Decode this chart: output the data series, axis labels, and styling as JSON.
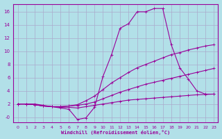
{
  "xlabel": "Windchill (Refroidissement éolien,°C)",
  "bg_color": "#b2e0e8",
  "grid_color": "#aaaacc",
  "line_color": "#990099",
  "xlim": [
    -0.5,
    23.5
  ],
  "ylim": [
    -0.8,
    17.2
  ],
  "xticks": [
    0,
    1,
    2,
    3,
    4,
    5,
    6,
    7,
    8,
    9,
    10,
    11,
    12,
    13,
    14,
    15,
    16,
    17,
    18,
    19,
    20,
    21,
    22,
    23
  ],
  "yticks": [
    0,
    2,
    4,
    6,
    8,
    10,
    12,
    14,
    16
  ],
  "ytick_labels": [
    "-0",
    "2",
    "4",
    "6",
    "8",
    "10",
    "12",
    "14",
    "16"
  ],
  "line1_x": [
    0,
    1,
    2,
    3,
    4,
    5,
    6,
    7,
    8,
    9,
    10,
    11,
    12,
    13,
    14,
    15,
    16,
    17,
    18,
    19,
    20,
    21,
    22,
    23
  ],
  "line1_y": [
    2.0,
    2.0,
    2.0,
    1.8,
    1.6,
    1.4,
    1.2,
    -0.35,
    -0.1,
    1.5,
    6.2,
    9.5,
    13.5,
    14.2,
    16.0,
    16.0,
    16.5,
    16.5,
    11.0,
    7.5,
    5.8,
    4.0,
    3.5,
    3.5
  ],
  "line2_x": [
    0,
    1,
    2,
    3,
    4,
    5,
    6,
    7,
    8,
    9,
    10,
    11,
    12,
    13,
    14,
    15,
    16,
    17,
    18,
    19,
    20,
    21,
    22,
    23
  ],
  "line2_y": [
    2.0,
    2.0,
    1.9,
    1.7,
    1.6,
    1.6,
    1.7,
    1.9,
    2.5,
    3.2,
    4.2,
    5.2,
    6.0,
    6.8,
    7.5,
    8.0,
    8.5,
    9.0,
    9.5,
    9.8,
    10.2,
    10.5,
    10.8,
    11.0
  ],
  "line3_x": [
    0,
    1,
    2,
    3,
    4,
    5,
    6,
    7,
    8,
    9,
    10,
    11,
    12,
    13,
    14,
    15,
    16,
    17,
    18,
    19,
    20,
    21,
    22,
    23
  ],
  "line3_y": [
    2.0,
    2.0,
    1.9,
    1.7,
    1.6,
    1.6,
    1.7,
    1.8,
    2.0,
    2.3,
    2.8,
    3.3,
    3.8,
    4.2,
    4.6,
    5.0,
    5.3,
    5.6,
    5.9,
    6.2,
    6.5,
    6.8,
    7.1,
    7.4
  ],
  "line4_x": [
    0,
    1,
    2,
    3,
    4,
    5,
    6,
    7,
    8,
    9,
    10,
    11,
    12,
    13,
    14,
    15,
    16,
    17,
    18,
    19,
    20,
    21,
    22,
    23
  ],
  "line4_y": [
    2.0,
    2.0,
    1.9,
    1.7,
    1.6,
    1.5,
    1.5,
    1.4,
    1.6,
    1.8,
    2.0,
    2.2,
    2.4,
    2.6,
    2.7,
    2.8,
    2.9,
    3.0,
    3.1,
    3.2,
    3.3,
    3.4,
    3.45,
    3.5
  ]
}
